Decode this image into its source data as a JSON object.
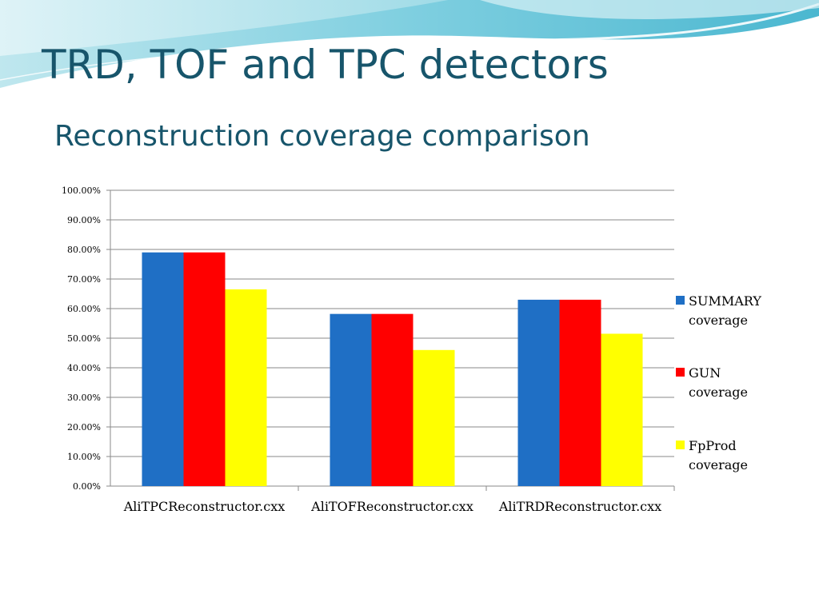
{
  "slide": {
    "title": "TRD, TOF and TPC detectors",
    "subtitle": "Reconstruction coverage comparison"
  },
  "chart_data": {
    "type": "bar",
    "categories": [
      "AliTPCReconstructor.cxx",
      "AliTOFReconstructor.cxx",
      "AliTRDReconstructor.cxx"
    ],
    "series": [
      {
        "name": "SUMMARY coverage",
        "legend_lines": [
          "SUMMARY",
          "coverage"
        ],
        "color": "#1f6fc5",
        "values": [
          79.0,
          58.2,
          63.0
        ]
      },
      {
        "name": "GUN coverage",
        "legend_lines": [
          "GUN",
          "coverage"
        ],
        "color": "#ff0000",
        "values": [
          79.0,
          58.2,
          63.0
        ]
      },
      {
        "name": "FpProd coverage",
        "legend_lines": [
          "FpProd",
          "coverage"
        ],
        "color": "#ffff00",
        "values": [
          66.5,
          46.0,
          51.5
        ]
      }
    ],
    "yticks": [
      "0.00%",
      "10.00%",
      "20.00%",
      "30.00%",
      "40.00%",
      "50.00%",
      "60.00%",
      "70.00%",
      "80.00%",
      "90.00%",
      "100.00%"
    ],
    "ylim": [
      0,
      100
    ],
    "grid": true,
    "legend": "right"
  }
}
